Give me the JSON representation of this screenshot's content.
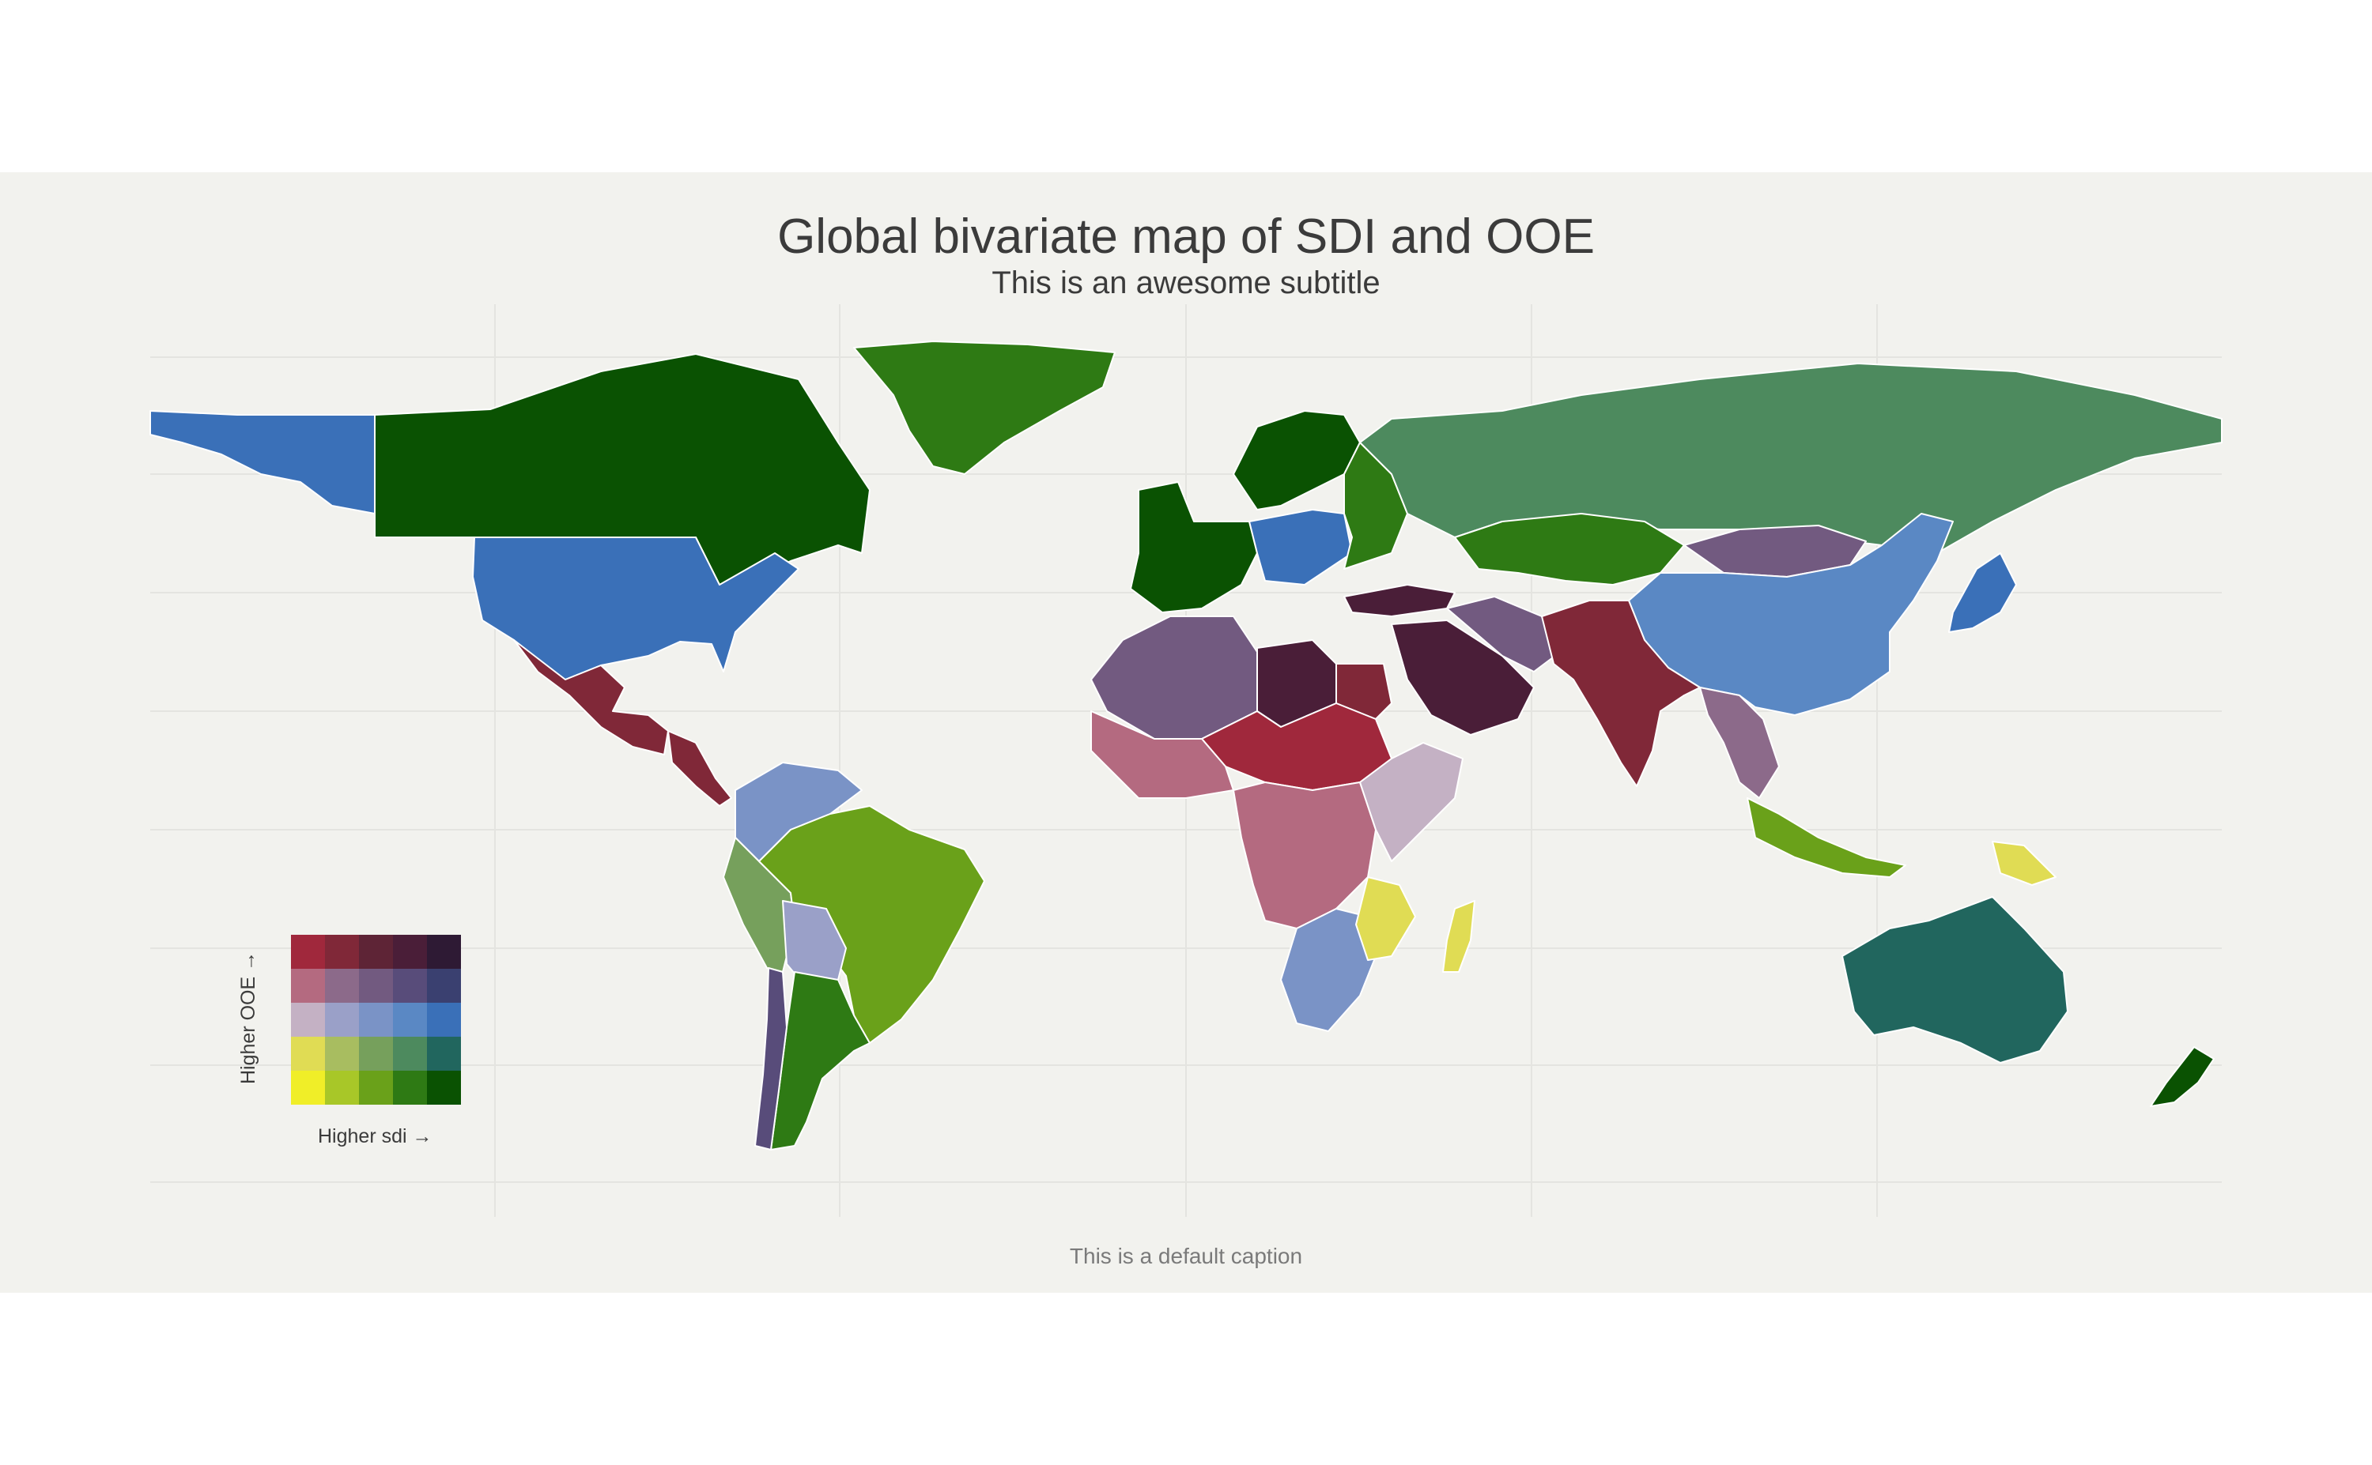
{
  "title": "Global bivariate map of SDI and OOE",
  "subtitle": "This is an awesome subtitle",
  "caption": "This is a default caption",
  "legend": {
    "x_label": "Higher sdi →",
    "y_label": "Higher OOE →",
    "grid_colors": [
      [
        "#f0ee28",
        "#a8c728",
        "#6aa11a",
        "#2e7a14",
        "#0a5202"
      ],
      [
        "#e0dc54",
        "#a8bd60",
        "#76a05c",
        "#4d8a5e",
        "#21665e"
      ],
      [
        "#c4b1c4",
        "#9aa0c8",
        "#7a93c6",
        "#5a88c4",
        "#3a70b8"
      ],
      [
        "#b46a80",
        "#8c6a8a",
        "#725a80",
        "#584c7a",
        "#3a4070"
      ],
      [
        "#a0283c",
        "#802838",
        "#5e2436",
        "#4a1e38",
        "#2e1a34"
      ]
    ]
  },
  "colors": {
    "background": "#f2f2ee",
    "outer": "#ffffff",
    "land_border": "#ffffff",
    "graticule": "#e4e4e0"
  },
  "regions": [
    {
      "name": "Alaska",
      "color": "#3a70b8"
    },
    {
      "name": "Canada",
      "color": "#0a5202"
    },
    {
      "name": "Greenland",
      "color": "#2e7a14"
    },
    {
      "name": "United States",
      "color": "#3a70b8"
    },
    {
      "name": "Mexico",
      "color": "#802838"
    },
    {
      "name": "Central America",
      "color": "#802838"
    },
    {
      "name": "Colombia & Venezuela",
      "color": "#7a93c6"
    },
    {
      "name": "Peru",
      "color": "#76a05c"
    },
    {
      "name": "Brazil",
      "color": "#6aa11a"
    },
    {
      "name": "Bolivia",
      "color": "#9aa0c8"
    },
    {
      "name": "Argentina",
      "color": "#2e7a14"
    },
    {
      "name": "Chile",
      "color": "#584c7a"
    },
    {
      "name": "Western Europe",
      "color": "#0a5202"
    },
    {
      "name": "Central Europe",
      "color": "#3a70b8"
    },
    {
      "name": "Scandinavia",
      "color": "#0a5202"
    },
    {
      "name": "Eastern Europe",
      "color": "#2e7a14"
    },
    {
      "name": "Russia",
      "color": "#4d8a5e"
    },
    {
      "name": "Kazakhstan",
      "color": "#2e7a14"
    },
    {
      "name": "Mongolia",
      "color": "#725a80"
    },
    {
      "name": "China",
      "color": "#5a88c4"
    },
    {
      "name": "Japan",
      "color": "#3a70b8"
    },
    {
      "name": "North Africa West",
      "color": "#725a80"
    },
    {
      "name": "Libya",
      "color": "#4a1e38"
    },
    {
      "name": "Egypt",
      "color": "#802838"
    },
    {
      "name": "Arabian Peninsula",
      "color": "#4a1e38"
    },
    {
      "name": "Iran",
      "color": "#725a80"
    },
    {
      "name": "Turkey",
      "color": "#4a1e38"
    },
    {
      "name": "South Asia",
      "color": "#802838"
    },
    {
      "name": "Southeast Asia",
      "color": "#8c6a8a"
    },
    {
      "name": "Sahel",
      "color": "#a0283c"
    },
    {
      "name": "West Africa",
      "color": "#b46a80"
    },
    {
      "name": "Central Africa",
      "color": "#b46a80"
    },
    {
      "name": "East Africa",
      "color": "#c4b1c4"
    },
    {
      "name": "Southern Africa",
      "color": "#7a93c6"
    },
    {
      "name": "Mozambique",
      "color": "#e0dc54"
    },
    {
      "name": "Madagascar",
      "color": "#e0dc54"
    },
    {
      "name": "Indonesia",
      "color": "#6aa11a"
    },
    {
      "name": "Papua New Guinea",
      "color": "#e0dc54"
    },
    {
      "name": "Australia",
      "color": "#21665e"
    },
    {
      "name": "New Zealand",
      "color": "#0a5202"
    }
  ]
}
